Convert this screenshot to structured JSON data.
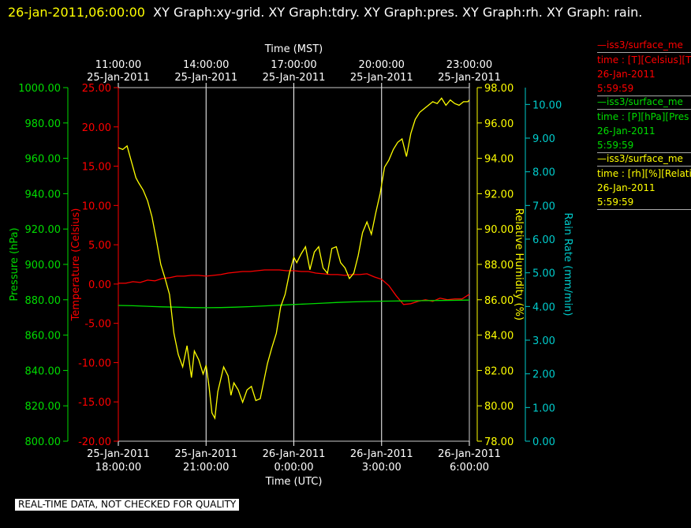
{
  "title": {
    "timestamp": "26-jan-2011,06:00:00",
    "text": "XY Graph:xy-grid.  XY Graph:tdry.  XY Graph:pres.  XY Graph:rh.  XY Graph: rain."
  },
  "legend": [
    {
      "line1": "iss3/surface_me",
      "line2": "time : [T][Celsius][T",
      "line3": "26-Jan-2011",
      "line4": "5:59:59",
      "color": "#ff0000"
    },
    {
      "line1": "iss3/surface_me",
      "line2": "time : [P][hPa][Pres",
      "line3": "26-Jan-2011",
      "line4": "5:59:59",
      "color": "#00dd00"
    },
    {
      "line1": "iss3/surface_me",
      "line2": "time : [rh][%][Relati",
      "line3": "26-Jan-2011",
      "line4": "5:59:59",
      "color": "#ffff00"
    }
  ],
  "disclaimer": "REAL-TIME DATA, NOT CHECKED FOR QUALITY",
  "chart_data": {
    "type": "line",
    "x_unit": "hours since 25-Jan-2011 18:00 UTC",
    "xlim": [
      0,
      12
    ],
    "top_axis": {
      "label": "Time (MST)",
      "ticks": [
        {
          "x": 0,
          "line1": "11:00:00",
          "line2": "25-Jan-2011"
        },
        {
          "x": 3,
          "line1": "14:00:00",
          "line2": "25-Jan-2011"
        },
        {
          "x": 6,
          "line1": "17:00:00",
          "line2": "25-Jan-2011"
        },
        {
          "x": 9,
          "line1": "20:00:00",
          "line2": "25-Jan-2011"
        },
        {
          "x": 12,
          "line1": "23:00:00",
          "line2": "25-Jan-2011"
        }
      ]
    },
    "bottom_axis": {
      "label": "Time (UTC)",
      "ticks": [
        {
          "x": 0,
          "line1": "25-Jan-2011",
          "line2": "18:00:00"
        },
        {
          "x": 3,
          "line1": "25-Jan-2011",
          "line2": "21:00:00"
        },
        {
          "x": 6,
          "line1": "26-Jan-2011",
          "line2": "0:00:00"
        },
        {
          "x": 9,
          "line1": "26-Jan-2011",
          "line2": "3:00:00"
        },
        {
          "x": 12,
          "line1": "26-Jan-2011",
          "line2": "6:00:00"
        }
      ]
    },
    "y_axes": [
      {
        "id": "pres",
        "label": "Pressure (hPa)",
        "color": "#00dd00",
        "ylim": [
          800,
          1000
        ],
        "ticks": [
          "800.00",
          "820.00",
          "840.00",
          "860.00",
          "880.00",
          "900.00",
          "920.00",
          "940.00",
          "960.00",
          "980.00",
          "1000.00"
        ]
      },
      {
        "id": "tdry",
        "label": "Temperature (Celsius)",
        "color": "#ff0000",
        "ylim": [
          -20,
          25
        ],
        "ticks": [
          "-20.00",
          "-15.00",
          "-10.00",
          "-5.00",
          "0.00",
          "5.00",
          "10.00",
          "15.00",
          "20.00",
          "25.00"
        ]
      },
      {
        "id": "rh",
        "label": "Relative Humidity (%)",
        "color": "#ffff00",
        "ylim": [
          78,
          98
        ],
        "ticks": [
          "78.00",
          "80.00",
          "82.00",
          "84.00",
          "86.00",
          "88.00",
          "90.00",
          "92.00",
          "94.00",
          "96.00",
          "98.00"
        ]
      },
      {
        "id": "rain",
        "label": "Rain Rate (mm/min)",
        "color": "#00cccc",
        "ylim": [
          0,
          10.5
        ],
        "ticks": [
          "0.00",
          "1.00",
          "2.00",
          "3.00",
          "4.00",
          "5.00",
          "6.00",
          "7.00",
          "8.00",
          "9.00",
          "10.00"
        ]
      }
    ],
    "grid": "vertical",
    "series": [
      {
        "axis": "tdry",
        "color": "#ff0000",
        "x": [
          0,
          0.25,
          0.5,
          0.75,
          1,
          1.25,
          1.5,
          1.75,
          2,
          2.25,
          2.5,
          2.75,
          3,
          3.25,
          3.5,
          3.75,
          4,
          4.25,
          4.5,
          4.75,
          5,
          5.25,
          5.5,
          5.75,
          6,
          6.25,
          6.5,
          6.75,
          7,
          7.25,
          7.5,
          7.75,
          8,
          8.25,
          8.5,
          8.75,
          9,
          9.25,
          9.5,
          9.75,
          10,
          10.25,
          10.5,
          10.75,
          11,
          11.25,
          11.5,
          11.75,
          12
        ],
        "y": [
          0.1,
          0.1,
          0.3,
          0.2,
          0.5,
          0.4,
          0.7,
          0.8,
          1.0,
          1.0,
          1.1,
          1.1,
          1.0,
          1.1,
          1.2,
          1.4,
          1.5,
          1.6,
          1.6,
          1.7,
          1.8,
          1.8,
          1.8,
          1.7,
          1.7,
          1.6,
          1.6,
          1.4,
          1.3,
          1.2,
          1.2,
          1.1,
          1.2,
          1.2,
          1.3,
          0.9,
          0.6,
          -0.2,
          -1.5,
          -2.6,
          -2.5,
          -2.2,
          -2.0,
          -2.2,
          -1.8,
          -2.0,
          -1.9,
          -1.9,
          -1.3
        ]
      },
      {
        "axis": "pres",
        "color": "#00dd00",
        "x": [
          0,
          0.5,
          1,
          1.5,
          2,
          2.5,
          3,
          3.5,
          4,
          4.5,
          5,
          5.5,
          6,
          6.5,
          7,
          7.5,
          8,
          8.5,
          9,
          9.5,
          10,
          10.5,
          11,
          11.5,
          12
        ],
        "y": [
          876.8,
          876.6,
          876.3,
          876.0,
          875.8,
          875.6,
          875.5,
          875.6,
          875.8,
          876.1,
          876.5,
          876.9,
          877.3,
          877.7,
          878.1,
          878.5,
          878.8,
          879.0,
          879.2,
          879.3,
          879.4,
          879.5,
          879.6,
          879.7,
          879.8
        ]
      },
      {
        "axis": "rh",
        "color": "#ffff00",
        "x": [
          0,
          0.15,
          0.3,
          0.45,
          0.6,
          0.7,
          0.85,
          1.0,
          1.15,
          1.3,
          1.45,
          1.6,
          1.75,
          1.9,
          2.05,
          2.2,
          2.35,
          2.5,
          2.6,
          2.75,
          2.9,
          3.0,
          3.1,
          3.2,
          3.3,
          3.4,
          3.5,
          3.6,
          3.75,
          3.85,
          3.95,
          4.1,
          4.25,
          4.4,
          4.55,
          4.7,
          4.85,
          5.0,
          5.1,
          5.25,
          5.4,
          5.55,
          5.7,
          5.85,
          6.0,
          6.1,
          6.25,
          6.4,
          6.55,
          6.7,
          6.85,
          7.0,
          7.15,
          7.3,
          7.45,
          7.6,
          7.75,
          7.9,
          8.05,
          8.2,
          8.35,
          8.5,
          8.65,
          8.8,
          8.95,
          9.1,
          9.25,
          9.4,
          9.55,
          9.7,
          9.85,
          10.0,
          10.15,
          10.3,
          10.45,
          10.6,
          10.75,
          10.9,
          11.05,
          11.2,
          11.35,
          11.5,
          11.65,
          11.8,
          11.95,
          12.0
        ],
        "y": [
          94.6,
          94.5,
          94.7,
          93.8,
          92.9,
          92.6,
          92.2,
          91.6,
          90.7,
          89.4,
          88.0,
          87.2,
          86.3,
          84.1,
          82.9,
          82.2,
          83.4,
          81.6,
          83.1,
          82.6,
          81.8,
          82.3,
          81.1,
          79.6,
          79.3,
          80.8,
          81.5,
          82.2,
          81.7,
          80.6,
          81.3,
          80.9,
          80.2,
          80.9,
          81.1,
          80.3,
          80.4,
          81.6,
          82.4,
          83.3,
          84.1,
          85.6,
          86.3,
          87.5,
          88.4,
          88.1,
          88.6,
          89.0,
          87.7,
          88.7,
          89.0,
          87.8,
          87.5,
          88.9,
          89.0,
          88.1,
          87.8,
          87.2,
          87.5,
          88.5,
          89.8,
          90.4,
          89.7,
          90.9,
          92.0,
          93.5,
          93.9,
          94.5,
          94.9,
          95.1,
          94.1,
          95.4,
          96.2,
          96.6,
          96.8,
          97.0,
          97.2,
          97.1,
          97.4,
          97.0,
          97.3,
          97.1,
          97.0,
          97.2,
          97.2,
          97.3
        ]
      }
    ]
  }
}
